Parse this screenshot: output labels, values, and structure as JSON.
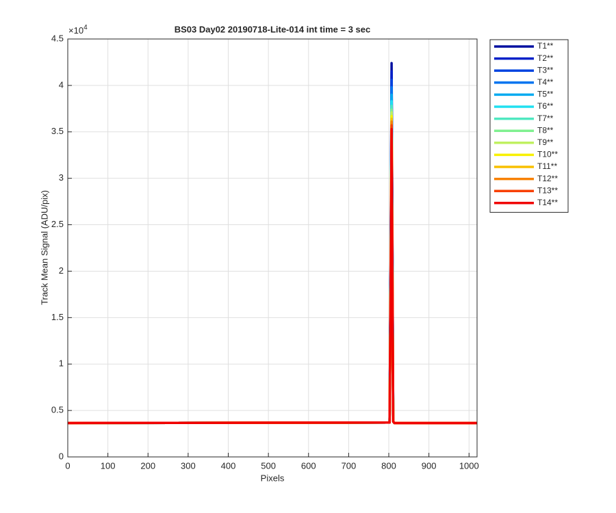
{
  "chart_data": {
    "type": "line",
    "title": "BS03 Day02 20190718-Lite-014 int time = 3 sec",
    "x_label": "Pixels",
    "y_label": "Track Mean Signal (ADU/pix)",
    "y_multiplier": "×10",
    "y_exponent": "4",
    "x": [
      0,
      802,
      805,
      807,
      809,
      811,
      814,
      1020
    ],
    "xlim": [
      0,
      1020
    ],
    "xticks": [
      0,
      100,
      200,
      300,
      400,
      500,
      600,
      700,
      800,
      900,
      1000
    ],
    "ylim": [
      0,
      45000
    ],
    "yticks": [
      {
        "value": 0,
        "label": "0"
      },
      {
        "value": 5000,
        "label": "0.5"
      },
      {
        "value": 10000,
        "label": "1"
      },
      {
        "value": 15000,
        "label": "1.5"
      },
      {
        "value": 20000,
        "label": "2"
      },
      {
        "value": 25000,
        "label": "2.5"
      },
      {
        "value": 30000,
        "label": "3"
      },
      {
        "value": 35000,
        "label": "3.5"
      },
      {
        "value": 40000,
        "label": "4"
      },
      {
        "value": 45000,
        "label": "4.5"
      }
    ],
    "grid": true,
    "legend": "outside-right",
    "series": [
      {
        "name": "T1**",
        "color": "#0010a0",
        "values": [
          3650,
          3700,
          23300,
          42400,
          23300,
          3800,
          3650,
          3650
        ]
      },
      {
        "name": "T2**",
        "color": "#0020c8",
        "values": [
          3650,
          3700,
          22800,
          41500,
          22800,
          3800,
          3650,
          3650
        ]
      },
      {
        "name": "T3**",
        "color": "#0044e0",
        "values": [
          3650,
          3700,
          22300,
          40600,
          22300,
          3800,
          3650,
          3650
        ]
      },
      {
        "name": "T4**",
        "color": "#0074f0",
        "values": [
          3650,
          3700,
          21900,
          39800,
          21900,
          3800,
          3650,
          3650
        ]
      },
      {
        "name": "T5**",
        "color": "#00aaf0",
        "values": [
          3650,
          3700,
          21500,
          39000,
          21500,
          3800,
          3650,
          3650
        ]
      },
      {
        "name": "T6**",
        "color": "#20e0f0",
        "values": [
          3650,
          3700,
          21100,
          38300,
          21100,
          3800,
          3650,
          3650
        ]
      },
      {
        "name": "T7**",
        "color": "#50e8c0",
        "values": [
          3650,
          3700,
          20800,
          37800,
          20800,
          3800,
          3650,
          3650
        ]
      },
      {
        "name": "T8**",
        "color": "#80f090",
        "values": [
          3650,
          3700,
          20600,
          37400,
          20600,
          3800,
          3650,
          3650
        ]
      },
      {
        "name": "T9**",
        "color": "#c0f060",
        "values": [
          3650,
          3700,
          20400,
          37100,
          20400,
          3800,
          3650,
          3650
        ]
      },
      {
        "name": "T10**",
        "color": "#f8f000",
        "values": [
          3650,
          3700,
          20200,
          36700,
          20200,
          3800,
          3650,
          3650
        ]
      },
      {
        "name": "T11**",
        "color": "#f8c000",
        "values": [
          3650,
          3700,
          20000,
          36400,
          20000,
          3800,
          3650,
          3650
        ]
      },
      {
        "name": "T12**",
        "color": "#f88000",
        "values": [
          3650,
          3700,
          19900,
          36100,
          19900,
          3800,
          3650,
          3650
        ]
      },
      {
        "name": "T13**",
        "color": "#f84000",
        "values": [
          3650,
          3700,
          19600,
          35700,
          19600,
          3800,
          3650,
          3650
        ]
      },
      {
        "name": "T14**",
        "color": "#f00000",
        "values": [
          3650,
          3700,
          19400,
          35300,
          19400,
          3800,
          3650,
          3650
        ]
      }
    ]
  }
}
